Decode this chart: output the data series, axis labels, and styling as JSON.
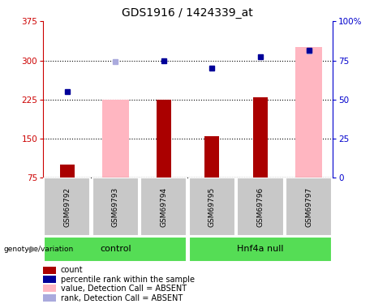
{
  "title": "GDS1916 / 1424339_at",
  "samples": [
    "GSM69792",
    "GSM69793",
    "GSM69794",
    "GSM69795",
    "GSM69796",
    "GSM69797"
  ],
  "group_labels": [
    "control",
    "Hnf4a null"
  ],
  "dark_red_bars": [
    100,
    0,
    225,
    155,
    230,
    0
  ],
  "pink_bars": [
    0,
    225,
    0,
    0,
    0,
    325
  ],
  "blue_squares_left": [
    240,
    null,
    300,
    285,
    307,
    320
  ],
  "light_blue_squares_left": [
    null,
    298,
    null,
    null,
    null,
    318
  ],
  "ylim_left": [
    75,
    375
  ],
  "ylim_right": [
    0,
    100
  ],
  "yticks_left": [
    75,
    150,
    225,
    300,
    375
  ],
  "yticks_right": [
    0,
    25,
    50,
    75,
    100
  ],
  "dark_red_color": "#AA0000",
  "pink_color": "#FFB6C1",
  "blue_color": "#000099",
  "light_blue_color": "#AAAADD",
  "legend_labels": [
    "count",
    "percentile rank within the sample",
    "value, Detection Call = ABSENT",
    "rank, Detection Call = ABSENT"
  ],
  "legend_colors": [
    "#AA0000",
    "#000099",
    "#FFB6C1",
    "#AAAADD"
  ],
  "left_tick_color": "#CC0000",
  "right_tick_color": "#0000CC",
  "green_color": "#55DD55",
  "gray_color": "#C8C8C8"
}
